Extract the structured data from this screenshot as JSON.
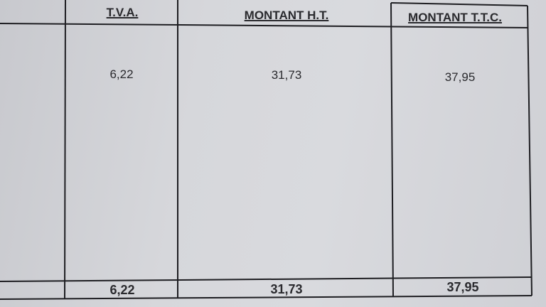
{
  "table": {
    "headers": [
      "T.V.A.",
      "MONTANT H.T.",
      "MONTANT T.T.C."
    ],
    "rows": [
      [
        "6,22",
        "31,73",
        "37,95"
      ]
    ],
    "totals": [
      "6,22",
      "31,73",
      "37,95"
    ]
  }
}
